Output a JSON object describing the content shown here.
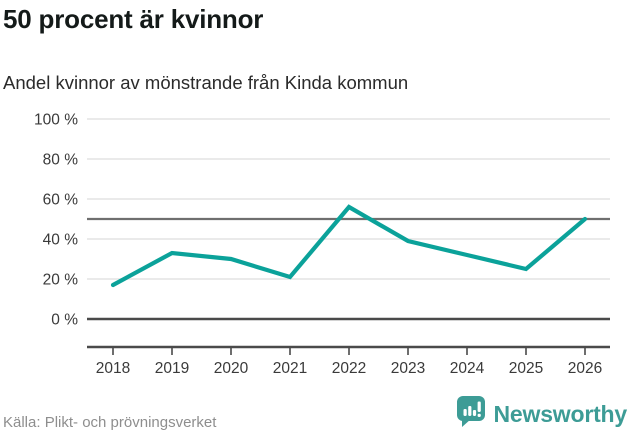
{
  "header": {
    "title": "50 procent är kvinnor",
    "subtitle": "Andel kvinnor av mönstrande från Kinda kommun"
  },
  "footer": {
    "source": "Källa: Plikt- och prövningsverket",
    "logo_text": "Newsworthy"
  },
  "colors": {
    "line": "#0ba29a",
    "grid": "#e4e4e4",
    "reference_line": "#6f6f6f",
    "zero_line": "#4a4a4a",
    "axis": "#4a4a4a",
    "tick_label": "#3a3a3a",
    "logo_teal": "#3d9c96",
    "logo_bar_white": "#ffffff"
  },
  "chart_data": {
    "type": "line",
    "title": "50 procent är kvinnor",
    "subtitle": "Andel kvinnor av mönstrande från Kinda kommun",
    "categories": [
      "2018",
      "2019",
      "2020",
      "2021",
      "2022",
      "2023",
      "2024",
      "2025",
      "2026"
    ],
    "series": [
      {
        "name": "Andel kvinnor av mönstrande",
        "values": [
          17,
          33,
          30,
          21,
          56,
          39,
          32,
          25,
          50
        ]
      }
    ],
    "unit": "%",
    "ylim": [
      0,
      100
    ],
    "ytick_values": [
      0,
      20,
      40,
      60,
      80,
      100
    ],
    "ytick_labels": [
      "0 %",
      "20 %",
      "40 %",
      "60 %",
      "80 %",
      "100 %"
    ],
    "reference_line_value": 50,
    "grid": true,
    "legend": false
  }
}
